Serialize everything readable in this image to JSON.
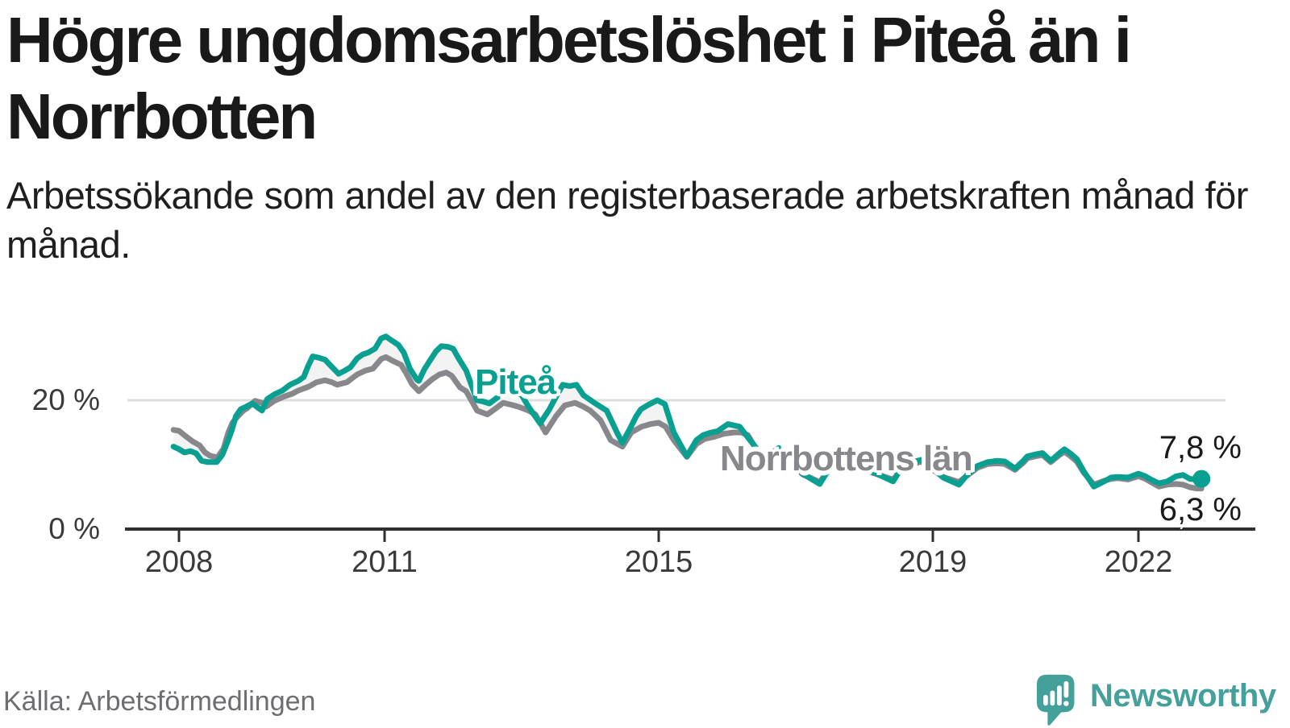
{
  "header": {
    "title": "Högre ungdomsarbetslöshet i Piteå än i Norrbotten",
    "subtitle": "Arbetssökande som andel av den registerbaserade arbetskraften månad för månad."
  },
  "footer": {
    "source": "Källa: Arbetsförmedlingen",
    "brand": "Newsworthy"
  },
  "colors": {
    "accent_teal": "#0aa091",
    "line_gray": "#87878c",
    "band_fill": "#f3f3f3",
    "gridline": "#dedede",
    "axis": "#2f2f2f",
    "tick_text": "#3a3a3a",
    "logo_teal": "#43a09a",
    "text_dark": "#191919",
    "source_gray": "#6d6d72"
  },
  "chart_data": {
    "type": "line",
    "title": "Högre ungdomsarbetslöshet i Piteå än i Norrbotten",
    "subtitle": "Arbetssökande som andel av den registerbaserade arbetskraften månad för månad.",
    "unit": "%",
    "x_axis": {
      "label": "",
      "ticks": [
        {
          "value": 2008,
          "label": "2008"
        },
        {
          "value": 2011,
          "label": "2011"
        },
        {
          "value": 2015,
          "label": "2015"
        },
        {
          "value": 2019,
          "label": "2019"
        },
        {
          "value": 2022,
          "label": "2022"
        }
      ],
      "range": [
        2007.9,
        2023.2
      ]
    },
    "y_axis": {
      "label": "",
      "ticks": [
        {
          "value": 0,
          "label": "0 %"
        },
        {
          "value": 20,
          "label": "20 %"
        }
      ],
      "gridlines": [
        20
      ],
      "range": [
        0,
        33
      ]
    },
    "legend_position": "inline-labels",
    "grid": "single-horizontal",
    "series": [
      {
        "name": "Piteå",
        "color": "#0aa091",
        "end_label": "7,8 %",
        "end_value": 7.8,
        "end_dot": true,
        "points": [
          [
            2007.92,
            12.8
          ],
          [
            2008.0,
            12.4
          ],
          [
            2008.08,
            11.9
          ],
          [
            2008.17,
            12.1
          ],
          [
            2008.25,
            11.75
          ],
          [
            2008.33,
            10.6
          ],
          [
            2008.42,
            10.4
          ],
          [
            2008.55,
            10.4
          ],
          [
            2008.63,
            11.5
          ],
          [
            2008.71,
            13.6
          ],
          [
            2008.77,
            15.3
          ],
          [
            2008.83,
            17.5
          ],
          [
            2008.9,
            18.6
          ],
          [
            2008.98,
            19.0
          ],
          [
            2009.07,
            19.5
          ],
          [
            2009.17,
            18.7
          ],
          [
            2009.21,
            18.4
          ],
          [
            2009.29,
            20.2
          ],
          [
            2009.39,
            20.9
          ],
          [
            2009.51,
            21.5
          ],
          [
            2009.62,
            22.4
          ],
          [
            2009.74,
            23.0
          ],
          [
            2009.82,
            23.6
          ],
          [
            2009.88,
            25.2
          ],
          [
            2009.95,
            26.8
          ],
          [
            2010.04,
            26.6
          ],
          [
            2010.13,
            26.3
          ],
          [
            2010.21,
            25.4
          ],
          [
            2010.33,
            24.1
          ],
          [
            2010.42,
            24.6
          ],
          [
            2010.5,
            25.1
          ],
          [
            2010.6,
            26.5
          ],
          [
            2010.68,
            27.1
          ],
          [
            2010.76,
            27.4
          ],
          [
            2010.86,
            28.0
          ],
          [
            2010.95,
            29.6
          ],
          [
            2011.02,
            29.9
          ],
          [
            2011.1,
            29.3
          ],
          [
            2011.2,
            28.6
          ],
          [
            2011.28,
            27.4
          ],
          [
            2011.37,
            24.9
          ],
          [
            2011.47,
            23.2
          ],
          [
            2011.5,
            23.0
          ],
          [
            2011.58,
            24.8
          ],
          [
            2011.67,
            26.3
          ],
          [
            2011.75,
            27.6
          ],
          [
            2011.83,
            28.4
          ],
          [
            2011.92,
            28.3
          ],
          [
            2012.0,
            28.0
          ],
          [
            2012.08,
            26.5
          ],
          [
            2012.19,
            24.6
          ],
          [
            2012.27,
            22.3
          ],
          [
            2012.35,
            20.0
          ],
          [
            2012.44,
            19.8
          ],
          [
            2012.53,
            19.5
          ],
          [
            2012.63,
            20.3
          ],
          [
            2012.75,
            21.2
          ],
          [
            2012.88,
            21.5
          ],
          [
            2013.0,
            20.8
          ],
          [
            2013.1,
            19.0
          ],
          [
            2013.27,
            16.4
          ],
          [
            2013.4,
            18.5
          ],
          [
            2013.5,
            20.5
          ],
          [
            2013.6,
            22.4
          ],
          [
            2013.7,
            22.2
          ],
          [
            2013.8,
            22.4
          ],
          [
            2013.9,
            20.8
          ],
          [
            2014.06,
            19.6
          ],
          [
            2014.24,
            18.4
          ],
          [
            2014.4,
            14.8
          ],
          [
            2014.47,
            13.4
          ],
          [
            2014.6,
            16.0
          ],
          [
            2014.67,
            17.5
          ],
          [
            2014.74,
            18.6
          ],
          [
            2014.85,
            19.3
          ],
          [
            2014.98,
            20.0
          ],
          [
            2015.09,
            19.4
          ],
          [
            2015.22,
            15.0
          ],
          [
            2015.41,
            11.3
          ],
          [
            2015.55,
            13.8
          ],
          [
            2015.65,
            14.6
          ],
          [
            2015.77,
            15.0
          ],
          [
            2015.86,
            15.2
          ],
          [
            2016.01,
            16.3
          ],
          [
            2016.18,
            15.9
          ],
          [
            2016.29,
            14.4
          ],
          [
            2016.45,
            12.2
          ],
          [
            2016.6,
            11.4
          ],
          [
            2016.75,
            12.6
          ],
          [
            2016.9,
            10.8
          ],
          [
            2017.1,
            8.6
          ],
          [
            2017.35,
            7.0
          ],
          [
            2017.5,
            9.6
          ],
          [
            2017.65,
            10.9
          ],
          [
            2017.8,
            11.2
          ],
          [
            2017.95,
            10.2
          ],
          [
            2018.1,
            9.0
          ],
          [
            2018.42,
            7.4
          ],
          [
            2018.55,
            9.6
          ],
          [
            2018.7,
            10.4
          ],
          [
            2018.85,
            10.8
          ],
          [
            2019.0,
            9.4
          ],
          [
            2019.15,
            8.0
          ],
          [
            2019.38,
            6.9
          ],
          [
            2019.5,
            8.4
          ],
          [
            2019.65,
            9.8
          ],
          [
            2019.8,
            10.4
          ],
          [
            2019.94,
            10.6
          ],
          [
            2020.05,
            10.5
          ],
          [
            2020.2,
            9.4
          ],
          [
            2020.32,
            10.6
          ],
          [
            2020.38,
            11.3
          ],
          [
            2020.5,
            11.6
          ],
          [
            2020.6,
            11.8
          ],
          [
            2020.72,
            10.6
          ],
          [
            2020.85,
            11.8
          ],
          [
            2020.92,
            12.4
          ],
          [
            2021.0,
            11.8
          ],
          [
            2021.1,
            10.9
          ],
          [
            2021.2,
            9.0
          ],
          [
            2021.35,
            6.6
          ],
          [
            2021.5,
            7.4
          ],
          [
            2021.6,
            8.0
          ],
          [
            2021.7,
            8.1
          ],
          [
            2021.85,
            8.0
          ],
          [
            2022.0,
            8.6
          ],
          [
            2022.1,
            8.2
          ],
          [
            2022.2,
            7.6
          ],
          [
            2022.3,
            7.1
          ],
          [
            2022.42,
            7.4
          ],
          [
            2022.55,
            8.2
          ],
          [
            2022.65,
            8.4
          ],
          [
            2022.75,
            7.8
          ],
          [
            2022.85,
            7.7
          ],
          [
            2022.92,
            7.8
          ]
        ]
      },
      {
        "name": "Norrbottens län",
        "color": "#87878c",
        "end_label": "6,3 %",
        "end_value": 6.3,
        "end_dot": false,
        "points": [
          [
            2007.92,
            15.4
          ],
          [
            2008.0,
            15.25
          ],
          [
            2008.1,
            14.4
          ],
          [
            2008.2,
            13.6
          ],
          [
            2008.3,
            13.0
          ],
          [
            2008.38,
            11.9
          ],
          [
            2008.45,
            11.4
          ],
          [
            2008.56,
            11.1
          ],
          [
            2008.65,
            12.5
          ],
          [
            2008.72,
            15.0
          ],
          [
            2008.78,
            16.5
          ],
          [
            2008.85,
            17.4
          ],
          [
            2008.94,
            18.4
          ],
          [
            2009.0,
            18.8
          ],
          [
            2009.11,
            19.9
          ],
          [
            2009.21,
            19.6
          ],
          [
            2009.27,
            19.0
          ],
          [
            2009.39,
            19.9
          ],
          [
            2009.54,
            20.6
          ],
          [
            2009.65,
            21.0
          ],
          [
            2009.74,
            21.5
          ],
          [
            2009.89,
            22.1
          ],
          [
            2010.01,
            22.8
          ],
          [
            2010.13,
            23.1
          ],
          [
            2010.23,
            22.8
          ],
          [
            2010.31,
            22.4
          ],
          [
            2010.45,
            22.8
          ],
          [
            2010.6,
            24.0
          ],
          [
            2010.72,
            24.6
          ],
          [
            2010.83,
            24.9
          ],
          [
            2010.95,
            26.4
          ],
          [
            2011.02,
            26.7
          ],
          [
            2011.12,
            26.1
          ],
          [
            2011.24,
            25.5
          ],
          [
            2011.31,
            24.3
          ],
          [
            2011.4,
            22.5
          ],
          [
            2011.5,
            21.4
          ],
          [
            2011.6,
            22.4
          ],
          [
            2011.7,
            23.3
          ],
          [
            2011.8,
            24.0
          ],
          [
            2011.9,
            24.3
          ],
          [
            2011.98,
            23.8
          ],
          [
            2012.1,
            22.0
          ],
          [
            2012.19,
            21.4
          ],
          [
            2012.35,
            18.4
          ],
          [
            2012.5,
            17.8
          ],
          [
            2012.63,
            18.8
          ],
          [
            2012.73,
            19.6
          ],
          [
            2012.85,
            19.3
          ],
          [
            2012.95,
            19.0
          ],
          [
            2013.1,
            18.4
          ],
          [
            2013.2,
            17.8
          ],
          [
            2013.35,
            15.0
          ],
          [
            2013.5,
            17.5
          ],
          [
            2013.63,
            19.2
          ],
          [
            2013.78,
            19.6
          ],
          [
            2013.9,
            19.0
          ],
          [
            2014.0,
            18.4
          ],
          [
            2014.15,
            16.9
          ],
          [
            2014.3,
            13.8
          ],
          [
            2014.47,
            12.8
          ],
          [
            2014.6,
            15.0
          ],
          [
            2014.75,
            15.9
          ],
          [
            2014.88,
            16.3
          ],
          [
            2015.0,
            16.5
          ],
          [
            2015.1,
            15.9
          ],
          [
            2015.22,
            13.8
          ],
          [
            2015.41,
            11.2
          ],
          [
            2015.55,
            13.2
          ],
          [
            2015.67,
            14.0
          ],
          [
            2015.8,
            14.3
          ],
          [
            2015.95,
            14.8
          ],
          [
            2016.1,
            15.0
          ],
          [
            2016.2,
            15.0
          ],
          [
            2016.3,
            14.6
          ],
          [
            2016.45,
            11.9
          ],
          [
            2016.6,
            11.1
          ],
          [
            2016.75,
            12.2
          ],
          [
            2016.9,
            10.5
          ],
          [
            2017.1,
            8.5
          ],
          [
            2017.35,
            7.3
          ],
          [
            2017.5,
            9.4
          ],
          [
            2017.65,
            10.5
          ],
          [
            2017.8,
            10.8
          ],
          [
            2017.95,
            9.9
          ],
          [
            2018.1,
            8.8
          ],
          [
            2018.42,
            7.7
          ],
          [
            2018.55,
            9.4
          ],
          [
            2018.7,
            10.1
          ],
          [
            2018.85,
            10.5
          ],
          [
            2019.0,
            9.2
          ],
          [
            2019.15,
            8.1
          ],
          [
            2019.38,
            7.3
          ],
          [
            2019.5,
            8.3
          ],
          [
            2019.65,
            9.5
          ],
          [
            2019.8,
            10.1
          ],
          [
            2019.94,
            10.2
          ],
          [
            2020.05,
            10.1
          ],
          [
            2020.2,
            9.2
          ],
          [
            2020.32,
            10.3
          ],
          [
            2020.38,
            11.0
          ],
          [
            2020.5,
            11.3
          ],
          [
            2020.6,
            11.5
          ],
          [
            2020.72,
            10.4
          ],
          [
            2020.85,
            11.5
          ],
          [
            2020.92,
            12.0
          ],
          [
            2021.0,
            11.4
          ],
          [
            2021.1,
            10.5
          ],
          [
            2021.2,
            8.8
          ],
          [
            2021.35,
            6.9
          ],
          [
            2021.5,
            7.5
          ],
          [
            2021.6,
            7.8
          ],
          [
            2021.7,
            7.9
          ],
          [
            2021.85,
            7.7
          ],
          [
            2022.0,
            8.2
          ],
          [
            2022.1,
            7.8
          ],
          [
            2022.2,
            7.2
          ],
          [
            2022.3,
            6.6
          ],
          [
            2022.42,
            6.9
          ],
          [
            2022.55,
            7.0
          ],
          [
            2022.65,
            6.9
          ],
          [
            2022.75,
            6.5
          ],
          [
            2022.85,
            6.3
          ],
          [
            2022.92,
            6.3
          ]
        ]
      }
    ]
  }
}
